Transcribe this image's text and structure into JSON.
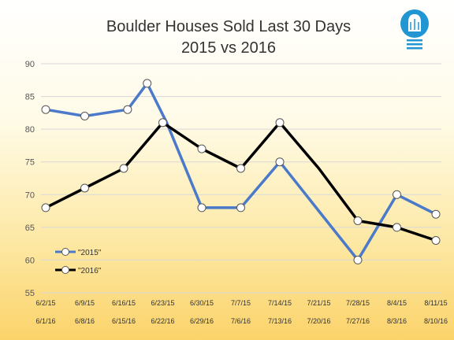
{
  "chart_data": {
    "type": "line",
    "title": "Boulder Houses Sold Last 30 Days",
    "subtitle": "2015 vs 2016",
    "ylim": [
      55,
      90
    ],
    "y_ticks": [
      55,
      60,
      65,
      70,
      75,
      80,
      85,
      90
    ],
    "x_labels_2015": [
      "6/2/15",
      "6/9/15",
      "6/16/15",
      "6/23/15",
      "6/30/15",
      "7/7/15",
      "7/14/15",
      "7/21/15",
      "7/28/15",
      "8/4/15",
      "8/11/15"
    ],
    "x_labels_2016": [
      "6/1/16",
      "6/8/16",
      "6/15/16",
      "6/22/16",
      "6/29/16",
      "7/6/16",
      "7/13/16",
      "7/20/16",
      "7/27/16",
      "8/3/16",
      "8/10/16"
    ],
    "grid": true,
    "legend_position": "lower-left",
    "series": [
      {
        "name": "\"2015\"",
        "color": "#4a7ac9",
        "x": [
          0,
          1,
          2.1,
          2.6,
          3.1,
          4,
          5,
          6,
          7,
          8,
          8.2,
          9,
          10
        ],
        "values": [
          83,
          82,
          83,
          87,
          81,
          68,
          68,
          75,
          67.5,
          60,
          62,
          70,
          67
        ]
      },
      {
        "name": "\"2016\"",
        "color": "#000000",
        "x": [
          0,
          1,
          2,
          3,
          4,
          5,
          6,
          7,
          8,
          9,
          10
        ],
        "values": [
          68,
          71,
          74,
          81,
          77,
          74,
          81,
          74,
          66,
          65,
          63
        ]
      }
    ],
    "marker_indices": [
      [
        0,
        1,
        2,
        3,
        5,
        6,
        7,
        9,
        11,
        12
      ],
      [
        0,
        1,
        2,
        3,
        4,
        5,
        6,
        8,
        9,
        10
      ]
    ]
  },
  "logo": {
    "icon": "lightbulb-icon",
    "color": "#2196d3"
  }
}
